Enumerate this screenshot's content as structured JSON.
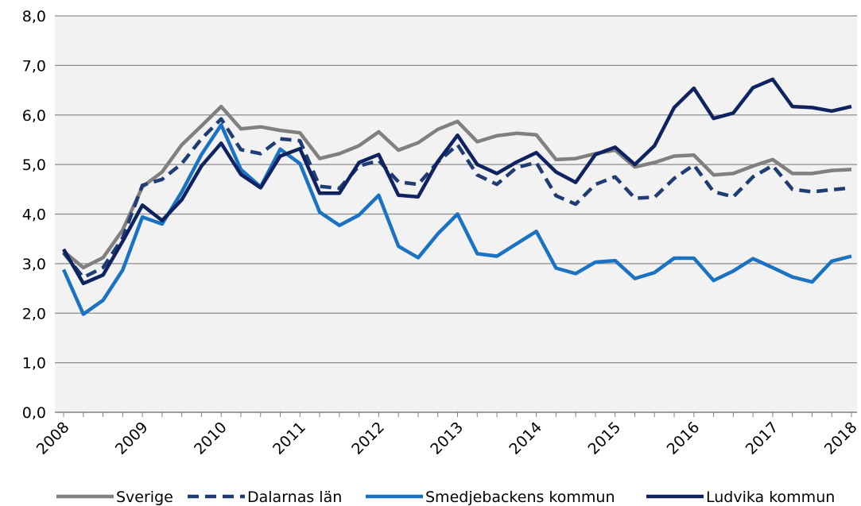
{
  "chart_data": {
    "type": "line",
    "title": "",
    "xlabel": "",
    "ylabel": "",
    "ylim": [
      0,
      8
    ],
    "yticks": [
      "0,0",
      "1,0",
      "2,0",
      "3,0",
      "4,0",
      "5,0",
      "6,0",
      "7,0",
      "8,0"
    ],
    "year_labels": [
      "2008",
      "2009",
      "2010",
      "2011",
      "2012",
      "2013",
      "2014",
      "2015",
      "2016",
      "2017",
      "2018"
    ],
    "grid": true,
    "legend_position": "bottom",
    "series": [
      {
        "name": "Sverige",
        "color": "#808080",
        "dash": "solid",
        "values": [
          3.25,
          2.92,
          3.12,
          3.68,
          4.55,
          4.85,
          5.4,
          5.78,
          6.17,
          5.72,
          5.76,
          5.69,
          5.64,
          5.12,
          5.22,
          5.38,
          5.66,
          5.29,
          5.44,
          5.71,
          5.87,
          5.46,
          5.58,
          5.63,
          5.6,
          5.1,
          5.12,
          5.22,
          5.29,
          4.95,
          5.04,
          5.17,
          5.19,
          4.79,
          4.82,
          4.97,
          5.1,
          4.82,
          4.82,
          4.88,
          4.9
        ]
      },
      {
        "name": "Dalarnas län",
        "color": "#1f3d73",
        "dash": "dashed",
        "values": [
          3.22,
          2.72,
          2.92,
          3.52,
          4.58,
          4.7,
          5.02,
          5.52,
          5.92,
          5.3,
          5.22,
          5.52,
          5.48,
          4.56,
          4.52,
          4.97,
          5.08,
          4.65,
          4.6,
          5.05,
          5.4,
          4.79,
          4.6,
          4.94,
          5.04,
          4.37,
          4.2,
          4.6,
          4.75,
          4.32,
          4.34,
          4.72,
          4.99,
          4.45,
          4.35,
          4.75,
          4.98,
          4.5,
          4.45,
          4.49,
          4.53
        ]
      },
      {
        "name": "Smedjebackens kommun",
        "color": "#1a73c2",
        "dash": "solid",
        "values": [
          2.88,
          1.98,
          2.26,
          2.87,
          3.94,
          3.8,
          4.45,
          5.2,
          5.8,
          4.9,
          4.55,
          5.31,
          5.02,
          4.04,
          3.77,
          3.98,
          4.38,
          3.35,
          3.12,
          3.6,
          4.0,
          3.2,
          3.15,
          3.4,
          3.65,
          2.91,
          2.8,
          3.03,
          3.06,
          2.7,
          2.82,
          3.11,
          3.11,
          2.66,
          2.85,
          3.1,
          2.92,
          2.73,
          2.63,
          3.05,
          3.15
        ]
      },
      {
        "name": "Ludvika kommun",
        "color": "#0f2360",
        "dash": "solid",
        "values": [
          3.29,
          2.6,
          2.77,
          3.45,
          4.18,
          3.87,
          4.29,
          4.97,
          5.43,
          4.8,
          4.53,
          5.17,
          5.32,
          4.42,
          4.42,
          5.04,
          5.2,
          4.38,
          4.35,
          5.06,
          5.59,
          5.0,
          4.82,
          5.05,
          5.24,
          4.85,
          4.64,
          5.2,
          5.35,
          5.0,
          5.38,
          6.15,
          6.54,
          5.93,
          6.04,
          6.55,
          6.72,
          6.17,
          6.15,
          6.08,
          6.17
        ]
      }
    ]
  }
}
